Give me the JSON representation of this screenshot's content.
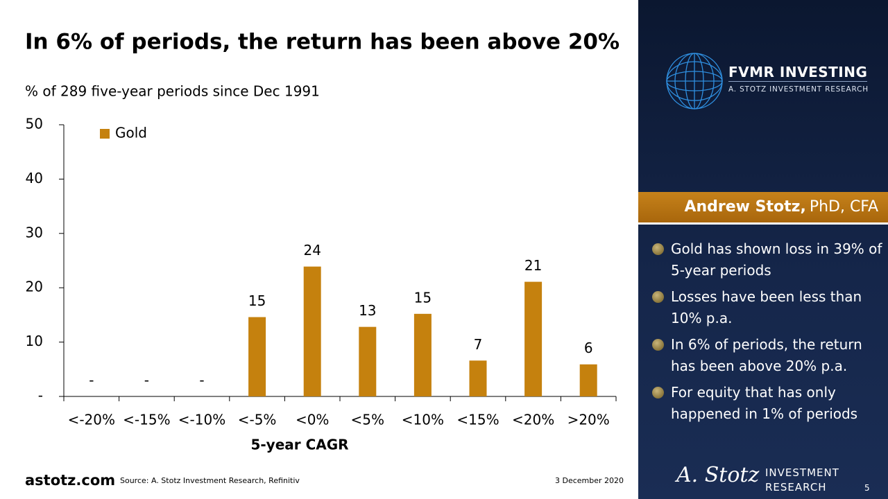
{
  "chart_data": {
    "type": "bar",
    "title": "In 6% of periods, the return has been above 20%",
    "subtitle": "% of 289 five-year periods since Dec 1991",
    "x_label": "5-year CAGR",
    "categories": [
      "<-20%",
      "<-15%",
      "<-10%",
      "<-5%",
      "<0%",
      "<5%",
      "<10%",
      "<15%",
      "<20%",
      ">20%"
    ],
    "series": [
      {
        "name": "Gold",
        "color": "#c5810e",
        "values": [
          0,
          0,
          0,
          14.6,
          23.9,
          12.8,
          15.2,
          6.6,
          21.1,
          5.9
        ],
        "value_labels": [
          "-",
          "-",
          "-",
          "15",
          "24",
          "13",
          "15",
          "7",
          "21",
          "6"
        ]
      }
    ],
    "ylim": [
      0,
      50
    ],
    "yticks": [
      {
        "value": 0,
        "label": "-"
      },
      10,
      20,
      30,
      40,
      50
    ],
    "grid": false,
    "legend": "top-left"
  },
  "sidebar": {
    "brand": "FVMR INVESTING",
    "tagline": "A. STOTZ INVESTMENT RESEARCH",
    "author": {
      "name": "Andrew Stotz,",
      "credentials": "PhD, CFA"
    },
    "bullets": [
      "Gold has shown loss in 39% of 5-year periods",
      "Losses have been less than 10% p.a.",
      "In 6% of periods, the return has been above 20% p.a.",
      "For equity that has only happened in 1% of periods"
    ]
  },
  "footer": {
    "website": "astotz.com",
    "source": "Source: A. Stotz Investment Research, Refinitiv",
    "date": "3 December 2020",
    "signature": "A. Stotz",
    "logo_line1": "INVESTMENT",
    "logo_line2": "RESEARCH",
    "page": "5"
  }
}
